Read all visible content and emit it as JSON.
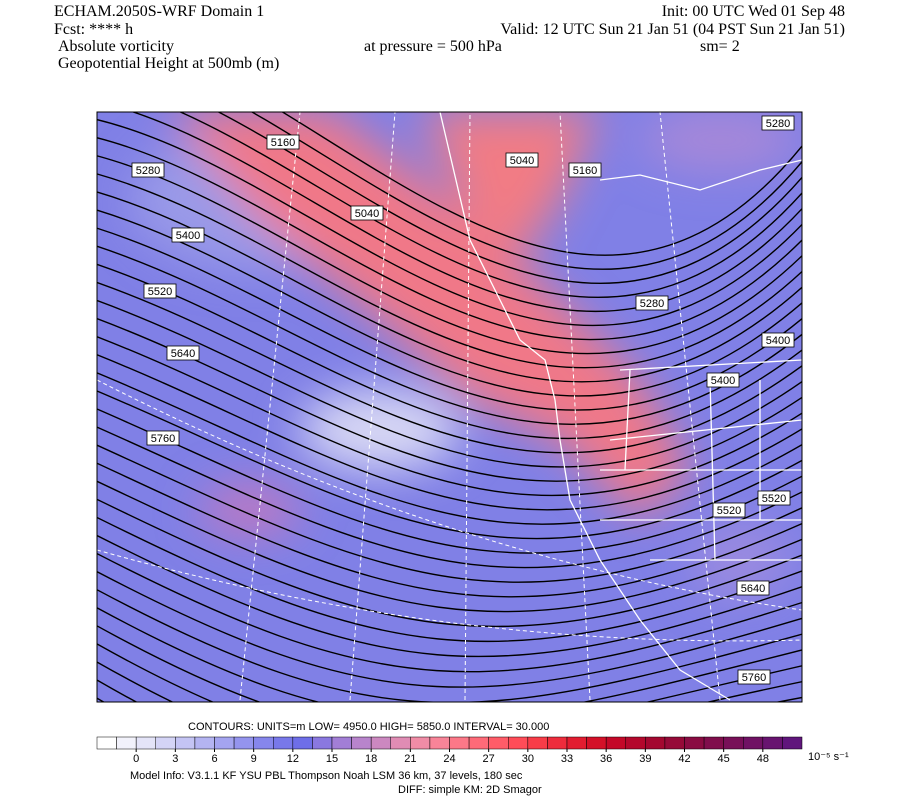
{
  "header": {
    "model": "ECHAM.2050S-WRF Domain 1",
    "forecast": "Fcst: **** h",
    "field1": "Absolute vorticity",
    "field2": "Geopotential Height at 500mb (m)",
    "init": "Init: 00 UTC Wed 01 Sep 48",
    "valid": "Valid: 12 UTC Sun 21 Jan 51 (04 PST Sun 21 Jan 51)",
    "pressure": "at pressure =  500 hPa",
    "smoothing": "sm= 2"
  },
  "map": {
    "contour_labels": [
      5160,
      5280,
      5400,
      5520,
      5640,
      5760,
      5040,
      5040,
      5160,
      5280,
      5400,
      5400,
      5520,
      5520,
      5640,
      5760,
      5280
    ]
  },
  "footer": {
    "contours": "CONTOURS:  UNITS=m  LOW=  4950.0       HIGH=  5850.0       INTERVAL=    30.000",
    "colorbar_ticks": [
      0,
      3,
      6,
      9,
      12,
      15,
      18,
      21,
      24,
      27,
      30,
      33,
      36,
      39,
      42,
      45,
      48
    ],
    "colorbar_unit": "10⁻⁵ s⁻¹",
    "colorbar_colors": [
      "#ffffff",
      "#f2f2fb",
      "#e4e4f8",
      "#d4d4f6",
      "#c4c4f4",
      "#b4b4f2",
      "#a4a4f0",
      "#9494ee",
      "#8686ec",
      "#7878ea",
      "#6e6ee8",
      "#8a78e0",
      "#a27ed6",
      "#b884cc",
      "#cc88c0",
      "#e08cb4",
      "#f08ca6",
      "#f88498",
      "#fc7888",
      "#fe6a78",
      "#ff5c68",
      "#ff4c58",
      "#f83c48",
      "#ee2c3c",
      "#e21c30",
      "#d41028",
      "#c40828",
      "#b4082c",
      "#a40830",
      "#960a38",
      "#8a0c42",
      "#800e4c",
      "#781058",
      "#701264",
      "#681470",
      "#60167c"
    ],
    "model_info": "Model Info: V3.1.1    KF        YSU PBL   Thompson      Noah LSM   36 km,     37 levels,   180 sec",
    "diff": "DIFF: simple KM: 2D Smagor"
  }
}
